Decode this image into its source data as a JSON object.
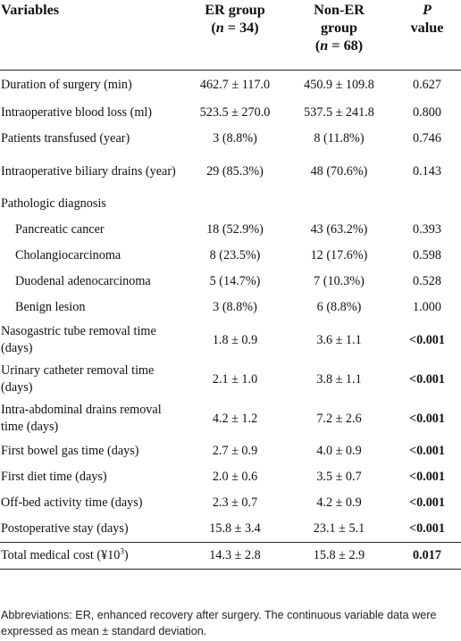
{
  "header": {
    "variables": "Variables",
    "er_line1": "ER group",
    "er_n_prefix": "(",
    "er_n_var": "n",
    "er_n_suffix": " = 34)",
    "noner_line1": "Non-ER",
    "noner_line2": "group",
    "noner_n_prefix": "(",
    "noner_n_var": "n",
    "noner_n_suffix": " = 68)",
    "p_line1": "P",
    "p_line2": "value"
  },
  "rows": [
    {
      "label": "Duration of surgery (min)",
      "er": "462.7 ± 117.0",
      "noner": "450.9 ± 109.8",
      "p": "0.627"
    },
    {
      "label": "Intraoperative blood loss (ml)",
      "er": "523.5 ± 270.0",
      "noner": "537.5 ± 241.8",
      "p": "0.800"
    },
    {
      "label": "Patients transfused (year)",
      "er": "3 (8.8%)",
      "noner": "8 (11.8%)",
      "p": "0.746"
    },
    {
      "label": "Intraoperative biliary drains (year)",
      "er": "29 (85.3%)",
      "noner": "48 (70.6%)",
      "p": "0.143"
    },
    {
      "label": "Pathologic diagnosis",
      "er": "",
      "noner": "",
      "p": ""
    },
    {
      "label": "Pancreatic cancer",
      "er": "18 (52.9%)",
      "noner": "43 (63.2%)",
      "p": "0.393"
    },
    {
      "label": "Cholangiocarcinoma",
      "er": "8 (23.5%)",
      "noner": "12 (17.6%)",
      "p": "0.598"
    },
    {
      "label": "Duodenal adenocarcinoma",
      "er": "5 (14.7%)",
      "noner": "7 (10.3%)",
      "p": "0.528"
    },
    {
      "label": "Benign lesion",
      "er": "3 (8.8%)",
      "noner": "6 (8.8%)",
      "p": "1.000"
    },
    {
      "label": "Nasogastric tube removal time (days)",
      "er": "1.8 ± 0.9",
      "noner": "3.6 ± 1.1",
      "p": "<0.001"
    },
    {
      "label": "Urinary catheter removal time (days)",
      "er": "2.1 ± 1.0",
      "noner": "3.8 ± 1.1",
      "p": "<0.001"
    },
    {
      "label": "Intra-abdominal drains removal time (days)",
      "er": "4.2 ± 1.2",
      "noner": "7.2 ± 2.6",
      "p": "<0.001"
    },
    {
      "label": "First bowel gas time (days)",
      "er": "2.7 ± 0.9",
      "noner": "4.0 ± 0.9",
      "p": "<0.001"
    },
    {
      "label": "First diet time (days)",
      "er": "2.0 ± 0.6",
      "noner": "3.5 ± 0.7",
      "p": "<0.001"
    },
    {
      "label": "Off-bed activity time (days)",
      "er": "2.3 ± 0.7",
      "noner": "4.2 ± 0.9",
      "p": "<0.001"
    },
    {
      "label": "Postoperative stay (days)",
      "er": "15.8 ± 3.4",
      "noner": "23.1 ± 5.1",
      "p": "<0.001"
    },
    {
      "label_main": "Total medical cost (¥10",
      "label_sup": "3",
      "label_end": ")",
      "er": "14.3 ± 2.8",
      "noner": "15.8 ± 2.9",
      "p": "0.017"
    }
  ],
  "footnote": "Abbreviations: ER, enhanced recovery after surgery. The continuous variable data were expressed as mean ± standard deviation."
}
